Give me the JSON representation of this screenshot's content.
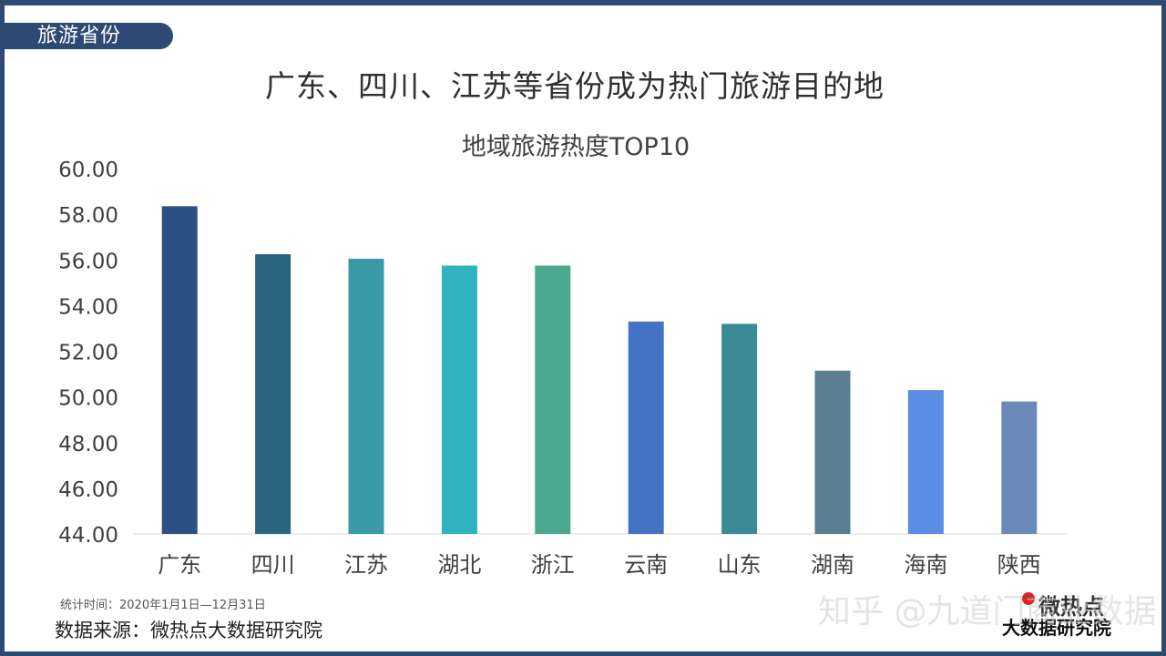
{
  "section_tag": "旅游省份",
  "headline": "广东、四川、江苏等省份成为热门旅游目的地",
  "chart_data": {
    "type": "bar",
    "title": "地域旅游热度TOP10",
    "categories": [
      "广东",
      "四川",
      "江苏",
      "湖北",
      "浙江",
      "云南",
      "山东",
      "湖南",
      "海南",
      "陕西"
    ],
    "values": [
      58.35,
      56.25,
      56.05,
      55.75,
      55.75,
      53.3,
      53.2,
      51.15,
      50.3,
      49.8
    ],
    "colors": [
      "#2c4f84",
      "#29667e",
      "#3a9aa8",
      "#2fb3be",
      "#4aa88f",
      "#4472c4",
      "#3a8a98",
      "#5b7e90",
      "#5b8ce6",
      "#6a88b8"
    ],
    "ylim": [
      44,
      60
    ],
    "yticks": [
      "44.00",
      "46.00",
      "48.00",
      "50.00",
      "52.00",
      "54.00",
      "56.00",
      "58.00",
      "60.00"
    ],
    "grid": false,
    "legend": "none"
  },
  "footnote": "统计时间：2020年1月1日—12月31日",
  "source": "数据来源：微热点大数据研究院",
  "brand": {
    "line1": "微热点",
    "line2": "大数据研究院"
  },
  "watermark": "知乎 @九道门商业数据"
}
